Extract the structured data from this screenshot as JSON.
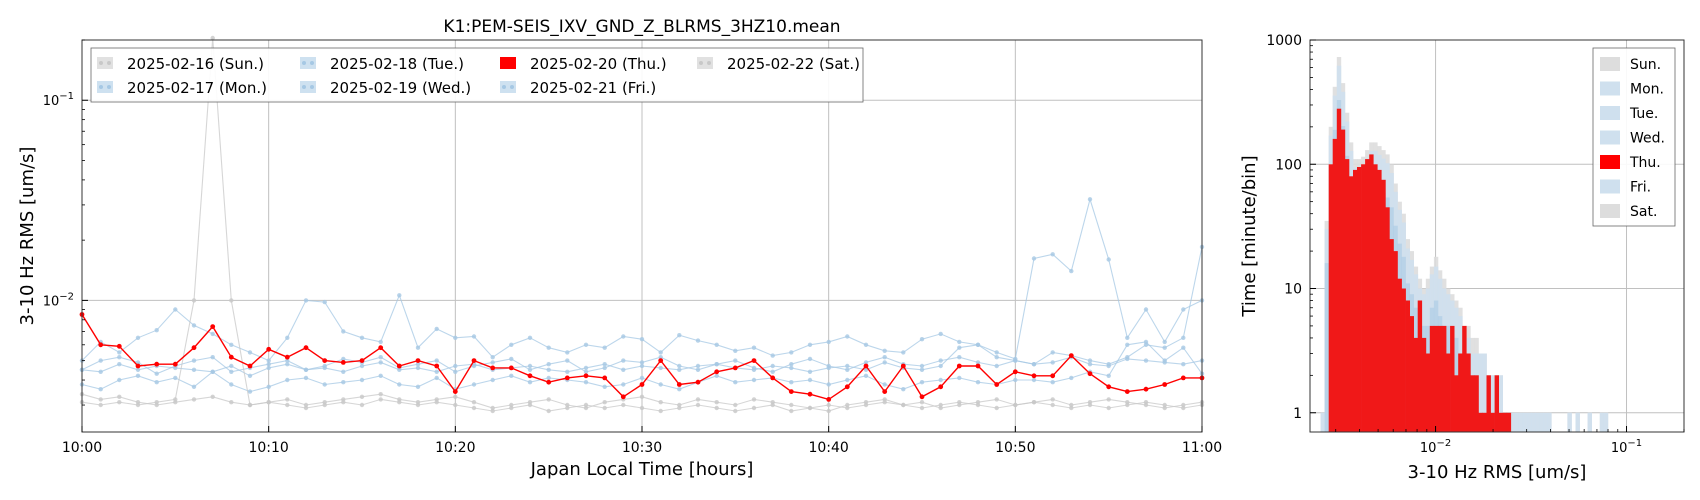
{
  "colors": {
    "highlight": "#ff0000",
    "weekday": "#a6c8e4",
    "weekday_hist": "#cfe0ee",
    "weekend": "#c8c8c8",
    "weekend_hist": "#dddddd",
    "grid": "#c0c0c0"
  },
  "chart_data": [
    {
      "type": "line",
      "title": "K1:PEM-SEIS_IXV_GND_Z_BLRMS_3HZ10.mean",
      "xlabel": "Japan Local Time [hours]",
      "ylabel": "3-10 Hz RMS [um/s]",
      "y_scale": "log",
      "ylim": [
        0.0022,
        0.2
      ],
      "xlim": [
        0,
        60
      ],
      "x_tick_labels": [
        "10:00",
        "10:10",
        "10:20",
        "10:30",
        "10:40",
        "10:50",
        "11:00"
      ],
      "x_tick_values": [
        0,
        10,
        20,
        30,
        40,
        50,
        60
      ],
      "y_tick_labels": [
        {
          "base": "10",
          "exp": "−2",
          "value": 0.01
        },
        {
          "base": "10",
          "exp": "−1",
          "value": 0.1
        }
      ],
      "grid": true,
      "legend_position": "top-left",
      "legend": [
        {
          "label": "2025-02-16 (Sun.)",
          "kind": "weekend"
        },
        {
          "label": "2025-02-17 (Mon.)",
          "kind": "weekday"
        },
        {
          "label": "2025-02-18 (Tue.)",
          "kind": "weekday"
        },
        {
          "label": "2025-02-19 (Wed.)",
          "kind": "weekday"
        },
        {
          "label": "2025-02-20 (Thu.)",
          "kind": "highlight"
        },
        {
          "label": "2025-02-21 (Fri.)",
          "kind": "weekday"
        },
        {
          "label": "2025-02-22 (Sat.)",
          "kind": "weekend"
        }
      ],
      "series": [
        {
          "name": "2025-02-16 (Sun.)",
          "kind": "weekend",
          "values": [
            0.0034,
            0.0032,
            0.0033,
            0.0031,
            0.003,
            0.0031,
            0.0032,
            0.0033,
            0.0031,
            0.003,
            0.0031,
            0.0032,
            0.003,
            0.0031,
            0.0032,
            0.0033,
            0.0034,
            0.0032,
            0.0031,
            0.0032,
            0.0033,
            0.0031,
            0.0029,
            0.003,
            0.0031,
            0.0032,
            0.003,
            0.0029,
            0.0031,
            0.0032,
            0.0033,
            0.0031,
            0.003,
            0.0032,
            0.0031,
            0.003,
            0.0032,
            0.0031,
            0.003,
            0.0029,
            0.0028,
            0.003,
            0.0031,
            0.0032,
            0.003,
            0.0031,
            0.0029,
            0.003,
            0.0031,
            0.0032,
            0.003,
            0.0031,
            0.0032,
            0.003,
            0.0031,
            0.0032,
            0.0031,
            0.003,
            0.0029,
            0.003,
            0.0031
          ]
        },
        {
          "name": "2025-02-17 (Mon.)",
          "kind": "weekday",
          "values": [
            0.005,
            0.0062,
            0.0055,
            0.0065,
            0.0071,
            0.009,
            0.0075,
            0.0068,
            0.006,
            0.0055,
            0.005,
            0.0065,
            0.01,
            0.0098,
            0.007,
            0.0065,
            0.0062,
            0.0106,
            0.0058,
            0.0072,
            0.0065,
            0.0066,
            0.0052,
            0.006,
            0.0065,
            0.0058,
            0.0055,
            0.006,
            0.0058,
            0.0066,
            0.0064,
            0.0055,
            0.0067,
            0.0063,
            0.006,
            0.0056,
            0.0058,
            0.0053,
            0.0055,
            0.006,
            0.0062,
            0.0066,
            0.006,
            0.0056,
            0.0055,
            0.0064,
            0.0068,
            0.0062,
            0.006,
            0.0055,
            0.0051,
            0.0162,
            0.017,
            0.014,
            0.032,
            0.016,
            0.0065,
            0.009,
            0.0062,
            0.009,
            0.01
          ]
        },
        {
          "name": "2025-02-18 (Tue.)",
          "kind": "weekday",
          "values": [
            0.0045,
            0.005,
            0.0052,
            0.0049,
            0.0043,
            0.0047,
            0.005,
            0.0052,
            0.0044,
            0.0046,
            0.0048,
            0.005,
            0.0045,
            0.0047,
            0.0051,
            0.0049,
            0.0052,
            0.0046,
            0.0048,
            0.005,
            0.0044,
            0.0047,
            0.0049,
            0.0051,
            0.0045,
            0.0048,
            0.005,
            0.0044,
            0.0046,
            0.005,
            0.0049,
            0.0052,
            0.0047,
            0.0045,
            0.0048,
            0.005,
            0.0046,
            0.0044,
            0.0048,
            0.0051,
            0.0047,
            0.0045,
            0.0049,
            0.0052,
            0.0048,
            0.0047,
            0.005,
            0.0052,
            0.0049,
            0.0047,
            0.005,
            0.0048,
            0.0049,
            0.0052,
            0.0048,
            0.0047,
            0.0051,
            0.005,
            0.0049,
            0.0048,
            0.005
          ]
        },
        {
          "name": "2025-02-19 (Wed.)",
          "kind": "weekday",
          "values": [
            0.0038,
            0.0036,
            0.004,
            0.0042,
            0.0039,
            0.0041,
            0.0037,
            0.0044,
            0.0038,
            0.0035,
            0.0037,
            0.004,
            0.0041,
            0.0038,
            0.0039,
            0.004,
            0.0042,
            0.0038,
            0.0037,
            0.0041,
            0.0036,
            0.0038,
            0.004,
            0.0042,
            0.0039,
            0.0041,
            0.004,
            0.0039,
            0.0037,
            0.0038,
            0.0041,
            0.0038,
            0.0036,
            0.0039,
            0.0042,
            0.0039,
            0.004,
            0.0041,
            0.0039,
            0.004,
            0.0038,
            0.004,
            0.0042,
            0.0038,
            0.0036,
            0.0039,
            0.004,
            0.0041,
            0.0039,
            0.0038,
            0.004,
            0.004,
            0.0039,
            0.0041,
            0.0044,
            0.0042,
            0.006,
            0.0062,
            0.005,
            0.0058,
            0.0043
          ]
        },
        {
          "name": "2025-02-20 (Thu.)",
          "kind": "highlight",
          "values": [
            0.0085,
            0.006,
            0.0059,
            0.0047,
            0.0048,
            0.0048,
            0.0058,
            0.0074,
            0.0052,
            0.0047,
            0.0057,
            0.0052,
            0.0058,
            0.005,
            0.0049,
            0.005,
            0.0058,
            0.0047,
            0.005,
            0.0047,
            0.0035,
            0.005,
            0.0046,
            0.0046,
            0.0042,
            0.0039,
            0.0041,
            0.0042,
            0.0041,
            0.0033,
            0.0038,
            0.005,
            0.0038,
            0.0039,
            0.0044,
            0.0046,
            0.005,
            0.0041,
            0.0035,
            0.0034,
            0.0032,
            0.0037,
            0.0047,
            0.0035,
            0.0047,
            0.0033,
            0.0037,
            0.0047,
            0.0047,
            0.0038,
            0.0044,
            0.0042,
            0.0042,
            0.0053,
            0.0043,
            0.0037,
            0.0035,
            0.0036,
            0.0038,
            0.0041,
            0.0041
          ]
        },
        {
          "name": "2025-02-21 (Fri.)",
          "kind": "weekday",
          "values": [
            0.0045,
            0.0044,
            0.0048,
            0.0045,
            0.0047,
            0.0046,
            0.0045,
            0.0044,
            0.0047,
            0.0042,
            0.0046,
            0.0048,
            0.0045,
            0.0046,
            0.0044,
            0.0047,
            0.0049,
            0.0045,
            0.0046,
            0.0044,
            0.0047,
            0.0048,
            0.0045,
            0.0046,
            0.0047,
            0.0045,
            0.0044,
            0.0046,
            0.0048,
            0.0045,
            0.0047,
            0.0046,
            0.0045,
            0.0047,
            0.0048,
            0.0046,
            0.0045,
            0.0047,
            0.0046,
            0.0044,
            0.0046,
            0.0047,
            0.0045,
            0.0049,
            0.0046,
            0.0045,
            0.0047,
            0.0058,
            0.006,
            0.0052,
            0.005,
            0.0048,
            0.0055,
            0.0053,
            0.005,
            0.0048,
            0.0052,
            0.006,
            0.0058,
            0.0065,
            0.0185
          ]
        },
        {
          "name": "2025-02-22 (Sat.)",
          "kind": "weekend",
          "values": [
            0.0031,
            0.003,
            0.0031,
            0.003,
            0.0031,
            0.0032,
            0.01,
            0.22,
            0.01,
            0.003,
            0.0031,
            0.003,
            0.0029,
            0.003,
            0.0031,
            0.003,
            0.0032,
            0.0031,
            0.003,
            0.0031,
            0.003,
            0.0029,
            0.0028,
            0.0029,
            0.003,
            0.0028,
            0.0029,
            0.003,
            0.0029,
            0.003,
            0.0029,
            0.0028,
            0.0029,
            0.003,
            0.0029,
            0.0028,
            0.0029,
            0.003,
            0.0028,
            0.0029,
            0.003,
            0.0029,
            0.003,
            0.0031,
            0.003,
            0.0029,
            0.003,
            0.0031,
            0.003,
            0.0029,
            0.003,
            0.0031,
            0.003,
            0.0029,
            0.003,
            0.0029,
            0.003,
            0.0031,
            0.003,
            0.0029,
            0.003
          ]
        }
      ]
    },
    {
      "type": "histogram",
      "xlabel": "3-10 Hz RMS [um/s]",
      "ylabel": "Time [minute/bin]",
      "x_scale": "log",
      "y_scale": "log",
      "xlim": [
        0.0022,
        0.2
      ],
      "ylim": [
        0.7,
        1000
      ],
      "x_tick_labels": [
        {
          "base": "10",
          "exp": "−2",
          "value": 0.01
        },
        {
          "base": "10",
          "exp": "−1",
          "value": 0.1
        }
      ],
      "y_tick_labels": [
        {
          "label": "1",
          "value": 1
        },
        {
          "label": "10",
          "value": 10
        },
        {
          "label": "100",
          "value": 100
        },
        {
          "label": "1000",
          "value": 1000
        }
      ],
      "grid": true,
      "legend_position": "top-right",
      "legend": [
        {
          "label": "Sun.",
          "kind": "weekend"
        },
        {
          "label": "Mon.",
          "kind": "weekday"
        },
        {
          "label": "Tue.",
          "kind": "weekday"
        },
        {
          "label": "Wed.",
          "kind": "weekday"
        },
        {
          "label": "Thu.",
          "kind": "highlight"
        },
        {
          "label": "Fri.",
          "kind": "weekday"
        },
        {
          "label": "Sat.",
          "kind": "weekend"
        }
      ],
      "bin_start": 0.0025,
      "bin_ratio": 1.05,
      "background_bins": [
        1,
        35,
        200,
        420,
        730,
        450,
        260,
        150,
        110,
        110,
        115,
        130,
        150,
        150,
        140,
        130,
        120,
        100,
        70,
        50,
        40,
        25,
        20,
        15,
        12,
        10,
        12,
        15,
        18,
        14,
        12,
        10,
        9,
        8,
        7,
        5,
        5,
        4,
        4,
        3,
        3,
        2,
        2,
        2,
        2,
        1,
        1,
        1,
        1,
        1,
        1,
        1,
        1,
        1,
        1,
        1,
        1,
        0,
        0,
        0,
        0,
        1,
        0,
        1,
        0,
        0,
        1,
        0,
        0,
        1,
        1,
        0,
        0,
        0
      ],
      "highlight_bins": [
        0,
        0,
        100,
        160,
        280,
        190,
        110,
        80,
        90,
        95,
        100,
        110,
        120,
        100,
        90,
        75,
        45,
        25,
        20,
        12,
        10,
        8,
        6,
        4,
        8,
        4,
        3,
        5,
        5,
        5,
        5,
        3,
        5,
        2,
        3,
        5,
        3,
        2,
        2,
        1,
        1,
        2,
        1,
        2,
        1,
        1,
        1,
        0,
        0,
        0,
        0,
        0,
        0,
        0,
        0,
        0,
        0,
        0,
        0,
        0,
        0,
        0,
        0,
        0,
        0,
        0,
        0,
        0,
        0,
        0,
        0,
        0,
        0,
        0
      ]
    }
  ]
}
